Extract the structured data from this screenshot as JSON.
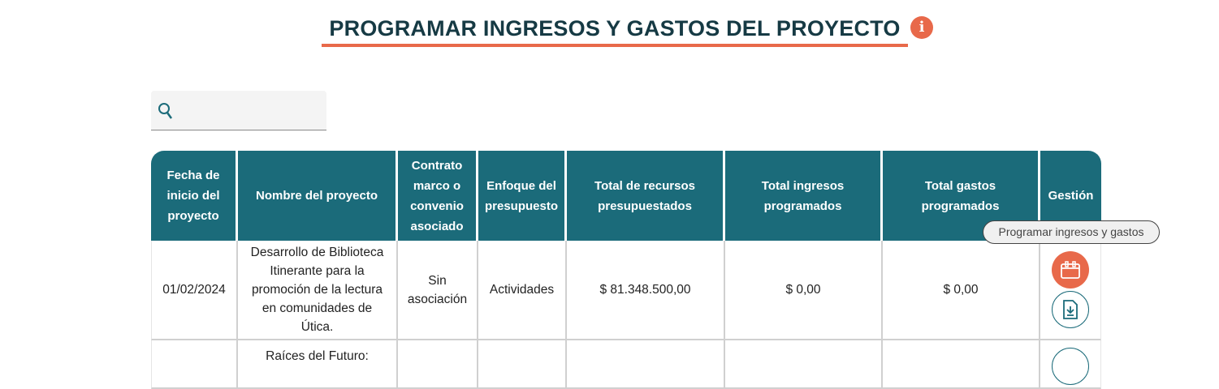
{
  "header": {
    "title": "PROGRAMAR INGRESOS Y GASTOS DEL PROYECTO",
    "info_icon": "info-icon"
  },
  "search": {
    "placeholder": "",
    "value": ""
  },
  "table": {
    "columns": [
      "Fecha de inicio del proyecto",
      "Nombre del proyecto",
      "Contrato marco o convenio asociado",
      "Enfoque del presupuesto",
      "Total de recursos presupuestados",
      "Total ingresos programados",
      "Total gastos programados",
      "Gestión"
    ],
    "rows": [
      {
        "fecha": "01/02/2024",
        "nombre": "Desarrollo de Biblioteca Itinerante para la promoción de la lectura en comunidades de Útica.",
        "contrato": "Sin asociación",
        "enfoque": "Actividades",
        "total_recursos": "$ 81.348.500,00",
        "total_ingresos": "$ 0,00",
        "total_gastos": "$ 0,00"
      },
      {
        "fecha": "",
        "nombre": "Raíces del Futuro:",
        "contrato": "",
        "enfoque": "",
        "total_recursos": "",
        "total_ingresos": "",
        "total_gastos": ""
      }
    ]
  },
  "tooltip": "Programar ingresos y gastos",
  "colors": {
    "accent": "#e8694a",
    "header": "#1b6b7a",
    "title": "#163a44"
  }
}
